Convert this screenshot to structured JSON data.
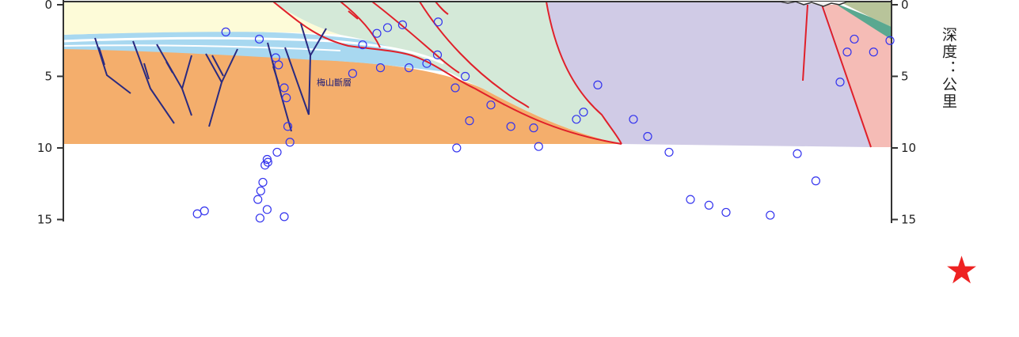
{
  "depth_axis": {
    "label": "深度：公里",
    "ticks": [
      0,
      5,
      10,
      15
    ]
  },
  "fault_label": "梅山斷層",
  "colors": {
    "orange_layer": "#f4ae6c",
    "blue_layer": "#a8d8f0",
    "cream_layer": "#fdfbd8",
    "green_layer": "#d4e9d8",
    "purple_layer": "#d0cbe6",
    "pink_layer": "#f5bcb6",
    "olive_layer": "#b8c49a",
    "teal_band": "#5aa890",
    "fault_red": "#e0202a",
    "thrust_blue": "#2a2a80",
    "quake_blue": "#3333ee",
    "star_red": "#ee2222"
  },
  "legend_symbol": "★",
  "earthquakes_km": [
    [
      22.8,
      1.9
    ],
    [
      27.5,
      2.4
    ],
    [
      29.8,
      3.7
    ],
    [
      30.2,
      4.2
    ],
    [
      31.0,
      5.8
    ],
    [
      31.3,
      6.5
    ],
    [
      31.5,
      8.5
    ],
    [
      31.8,
      9.6
    ],
    [
      30.0,
      10.3
    ],
    [
      28.7,
      11.0
    ],
    [
      28.6,
      10.8
    ],
    [
      28.3,
      11.2
    ],
    [
      28.0,
      12.4
    ],
    [
      27.7,
      13.0
    ],
    [
      27.3,
      13.6
    ],
    [
      27.6,
      14.9
    ],
    [
      18.8,
      14.6
    ],
    [
      19.8,
      14.4
    ],
    [
      28.6,
      14.3
    ],
    [
      31.0,
      14.8
    ],
    [
      40.6,
      4.8
    ],
    [
      42.0,
      2.8
    ],
    [
      44.0,
      2.0
    ],
    [
      45.5,
      1.6
    ],
    [
      47.6,
      1.4
    ],
    [
      52.6,
      1.2
    ],
    [
      44.5,
      4.4
    ],
    [
      48.5,
      4.4
    ],
    [
      51.0,
      4.1
    ],
    [
      52.5,
      3.5
    ],
    [
      55.0,
      5.8
    ],
    [
      57.0,
      8.1
    ],
    [
      55.2,
      10.0
    ],
    [
      56.4,
      5.0
    ],
    [
      60.0,
      7.0
    ],
    [
      62.8,
      8.5
    ],
    [
      66.0,
      8.6
    ],
    [
      66.7,
      9.9
    ],
    [
      72.0,
      8.0
    ],
    [
      73.0,
      7.5
    ],
    [
      75.0,
      5.6
    ],
    [
      80.0,
      8.0
    ],
    [
      82.0,
      9.2
    ],
    [
      85.0,
      10.3
    ],
    [
      88.0,
      13.6
    ],
    [
      90.6,
      14.0
    ],
    [
      93.0,
      14.5
    ],
    [
      99.2,
      14.7
    ],
    [
      103.0,
      10.4
    ],
    [
      105.6,
      12.3
    ],
    [
      109.0,
      5.4
    ],
    [
      111.0,
      2.4
    ],
    [
      110.0,
      3.3
    ],
    [
      113.7,
      3.3
    ],
    [
      116.0,
      2.5
    ]
  ]
}
